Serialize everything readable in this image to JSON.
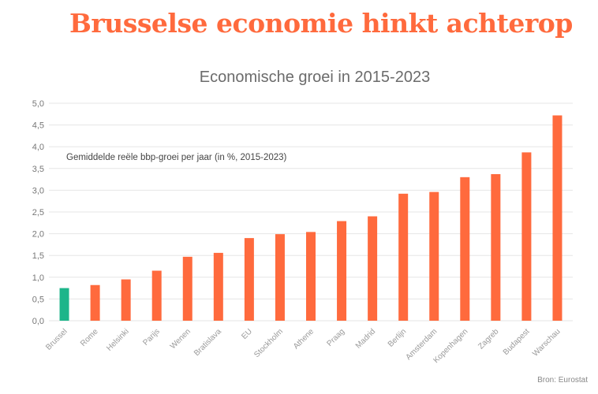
{
  "headline": "Brusselse economie hinkt achterop",
  "source": "Bron: Eurostat",
  "colors": {
    "accent": "#ff6a3d",
    "highlight": "#1db58a"
  },
  "chart_data": {
    "type": "bar",
    "title": "Economische groei in 2015-2023",
    "annotation": "Gemiddelde reële bbp-groei per jaar (in %, 2015-2023)",
    "categories": [
      "Brussel",
      "Rome",
      "Helsinki",
      "Parijs",
      "Wenen",
      "Bratislava",
      "EU",
      "Stockholm",
      "Athene",
      "Praag",
      "Madrid",
      "Berlijn",
      "Amsterdam",
      "Kopenhagen",
      "Zagreb",
      "Budapest",
      "Warschau"
    ],
    "values": [
      0.75,
      0.82,
      0.95,
      1.15,
      1.47,
      1.56,
      1.9,
      1.99,
      2.04,
      2.29,
      2.4,
      2.92,
      2.96,
      3.3,
      3.37,
      3.87,
      4.72
    ],
    "highlight_category": "Brussel",
    "ylim": [
      0,
      5
    ],
    "yticks": [
      "0,0",
      "0,5",
      "1,0",
      "1,5",
      "2,0",
      "2,5",
      "3,0",
      "3,5",
      "4,0",
      "4,5",
      "5,0"
    ],
    "grid": true,
    "xlabel": "",
    "ylabel": ""
  }
}
